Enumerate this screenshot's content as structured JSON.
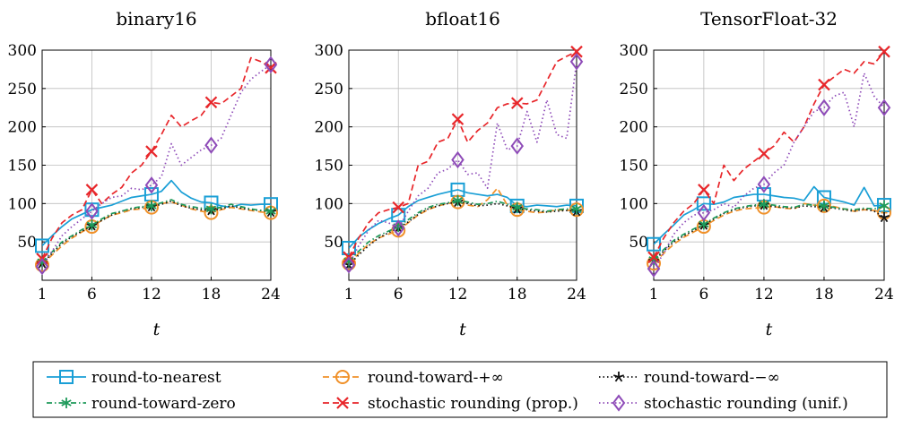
{
  "chart_data": [
    {
      "type": "line",
      "title": "binary16",
      "xlabel": "t",
      "ylabel": "",
      "xlim": [
        1,
        24
      ],
      "ylim": [
        0,
        300
      ],
      "xticks": [
        1,
        6,
        12,
        18,
        24
      ],
      "yticks": [
        50,
        100,
        150,
        200,
        250,
        300
      ],
      "x": [
        1,
        2,
        3,
        4,
        5,
        6,
        7,
        8,
        9,
        10,
        11,
        12,
        13,
        14,
        15,
        16,
        17,
        18,
        19,
        20,
        21,
        22,
        23,
        24
      ],
      "series": [
        {
          "name": "round-to-nearest",
          "values": [
            45,
            58,
            70,
            80,
            86,
            92,
            95,
            98,
            103,
            108,
            110,
            112,
            116,
            130,
            115,
            107,
            102,
            101,
            97,
            95,
            99,
            98,
            99,
            99
          ]
        },
        {
          "name": "round-toward-+∞",
          "values": [
            20,
            33,
            45,
            55,
            63,
            70,
            78,
            85,
            88,
            92,
            93,
            95,
            100,
            102,
            98,
            93,
            90,
            88,
            92,
            95,
            93,
            91,
            89,
            88
          ]
        },
        {
          "name": "round-toward-−∞",
          "values": [
            22,
            35,
            48,
            57,
            64,
            71,
            78,
            85,
            90,
            93,
            95,
            96,
            99,
            103,
            97,
            94,
            92,
            91,
            93,
            97,
            94,
            92,
            91,
            89
          ]
        },
        {
          "name": "round-toward-zero",
          "values": [
            24,
            37,
            50,
            58,
            66,
            72,
            80,
            87,
            90,
            94,
            96,
            97,
            101,
            105,
            99,
            96,
            94,
            93,
            95,
            99,
            96,
            93,
            91,
            90
          ]
        },
        {
          "name": "stochastic rounding (prop.)",
          "values": [
            28,
            55,
            75,
            85,
            92,
            118,
            100,
            112,
            121,
            140,
            150,
            168,
            190,
            215,
            200,
            208,
            215,
            232,
            230,
            240,
            250,
            290,
            285,
            277
          ]
        },
        {
          "name": "stochastic rounding (unif.)",
          "values": [
            18,
            38,
            58,
            70,
            80,
            90,
            100,
            108,
            110,
            120,
            118,
            124,
            135,
            178,
            150,
            160,
            170,
            176,
            185,
            215,
            245,
            262,
            272,
            281
          ]
        }
      ]
    },
    {
      "type": "line",
      "title": "bfloat16",
      "xlabel": "t",
      "ylabel": "",
      "xlim": [
        1,
        24
      ],
      "ylim": [
        0,
        300
      ],
      "xticks": [
        1,
        6,
        12,
        18,
        24
      ],
      "yticks": [
        50,
        100,
        150,
        200,
        250,
        300
      ],
      "x": [
        1,
        2,
        3,
        4,
        5,
        6,
        7,
        8,
        9,
        10,
        11,
        12,
        13,
        14,
        15,
        16,
        17,
        18,
        19,
        20,
        21,
        22,
        23,
        24
      ],
      "series": [
        {
          "name": "round-to-nearest",
          "values": [
            42,
            56,
            66,
            74,
            80,
            85,
            96,
            104,
            108,
            112,
            115,
            118,
            114,
            112,
            110,
            112,
            108,
            97,
            96,
            98,
            97,
            96,
            98,
            97
          ]
        },
        {
          "name": "round-toward-+∞",
          "values": [
            22,
            35,
            47,
            55,
            60,
            65,
            75,
            85,
            92,
            97,
            100,
            102,
            98,
            96,
            105,
            120,
            98,
            92,
            90,
            88,
            89,
            92,
            91,
            92
          ]
        },
        {
          "name": "round-toward-−∞",
          "values": [
            20,
            33,
            45,
            55,
            62,
            68,
            76,
            86,
            93,
            97,
            100,
            102,
            100,
            97,
            98,
            100,
            97,
            93,
            92,
            90,
            89,
            90,
            91,
            90
          ]
        },
        {
          "name": "round-toward-zero",
          "values": [
            25,
            38,
            50,
            58,
            64,
            70,
            79,
            88,
            95,
            99,
            101,
            104,
            102,
            99,
            100,
            103,
            99,
            95,
            93,
            92,
            90,
            92,
            93,
            93
          ]
        },
        {
          "name": "stochastic rounding (prop.)",
          "values": [
            30,
            55,
            75,
            88,
            92,
            95,
            100,
            150,
            155,
            180,
            185,
            210,
            180,
            195,
            205,
            225,
            230,
            231,
            230,
            235,
            260,
            285,
            292,
            298
          ]
        },
        {
          "name": "stochastic rounding (unif.)",
          "values": [
            20,
            45,
            65,
            78,
            75,
            68,
            90,
            110,
            120,
            140,
            145,
            157,
            138,
            140,
            120,
            205,
            170,
            175,
            220,
            180,
            235,
            190,
            185,
            285
          ]
        }
      ]
    },
    {
      "type": "line",
      "title": "TensorFloat-32",
      "xlabel": "t",
      "ylabel": "",
      "xlim": [
        1,
        24
      ],
      "ylim": [
        0,
        300
      ],
      "xticks": [
        1,
        6,
        12,
        18,
        24
      ],
      "yticks": [
        50,
        100,
        150,
        200,
        250,
        300
      ],
      "x": [
        1,
        2,
        3,
        4,
        5,
        6,
        7,
        8,
        9,
        10,
        11,
        12,
        13,
        14,
        15,
        16,
        17,
        18,
        19,
        20,
        21,
        22,
        23,
        24
      ],
      "series": [
        {
          "name": "round-to-nearest",
          "values": [
            47,
            60,
            72,
            85,
            92,
            100,
            99,
            102,
            108,
            110,
            112,
            112,
            110,
            108,
            107,
            104,
            122,
            108,
            105,
            102,
            98,
            121,
            97,
            98
          ]
        },
        {
          "name": "round-toward-+∞",
          "values": [
            22,
            35,
            47,
            56,
            63,
            70,
            78,
            85,
            90,
            93,
            94,
            95,
            96,
            94,
            93,
            100,
            98,
            97,
            96,
            93,
            90,
            92,
            91,
            88
          ]
        },
        {
          "name": "round-toward-−∞",
          "values": [
            25,
            38,
            50,
            58,
            65,
            72,
            80,
            87,
            92,
            95,
            97,
            98,
            96,
            95,
            94,
            97,
            96,
            95,
            94,
            92,
            90,
            93,
            90,
            82
          ]
        },
        {
          "name": "round-toward-zero",
          "values": [
            27,
            40,
            52,
            60,
            67,
            73,
            81,
            88,
            93,
            96,
            98,
            99,
            98,
            96,
            95,
            99,
            98,
            97,
            95,
            93,
            92,
            94,
            93,
            97
          ]
        },
        {
          "name": "stochastic rounding (prop.)",
          "values": [
            30,
            55,
            75,
            90,
            100,
            118,
            100,
            150,
            130,
            145,
            155,
            165,
            175,
            193,
            180,
            200,
            230,
            255,
            265,
            275,
            270,
            285,
            282,
            298
          ]
        },
        {
          "name": "stochastic rounding (unif.)",
          "values": [
            15,
            35,
            60,
            75,
            85,
            88,
            92,
            100,
            95,
            110,
            120,
            125,
            140,
            150,
            180,
            200,
            220,
            225,
            240,
            245,
            200,
            270,
            240,
            225
          ]
        }
      ]
    }
  ],
  "legend": {
    "placement": "bottom",
    "entries": [
      {
        "label": "round-to-nearest",
        "color": "#1a9fd6",
        "dash": "solid",
        "marker": "square"
      },
      {
        "label": "round-toward-+∞",
        "color": "#f0912a",
        "dash": "dashed",
        "marker": "circle"
      },
      {
        "label": "round-toward-−∞",
        "color": "#111111",
        "dash": "dotted",
        "marker": "star"
      },
      {
        "label": "round-toward-zero",
        "color": "#1e9a5a",
        "dash": "dashdot",
        "marker": "asterisk"
      },
      {
        "label": "stochastic rounding (prop.)",
        "color": "#e8262a",
        "dash": "dashed",
        "marker": "x"
      },
      {
        "label": "stochastic rounding (unif.)",
        "color": "#8e4bb8",
        "dash": "dotted",
        "marker": "diamond"
      }
    ]
  },
  "marker_x": [
    1,
    6,
    12,
    18,
    24
  ]
}
